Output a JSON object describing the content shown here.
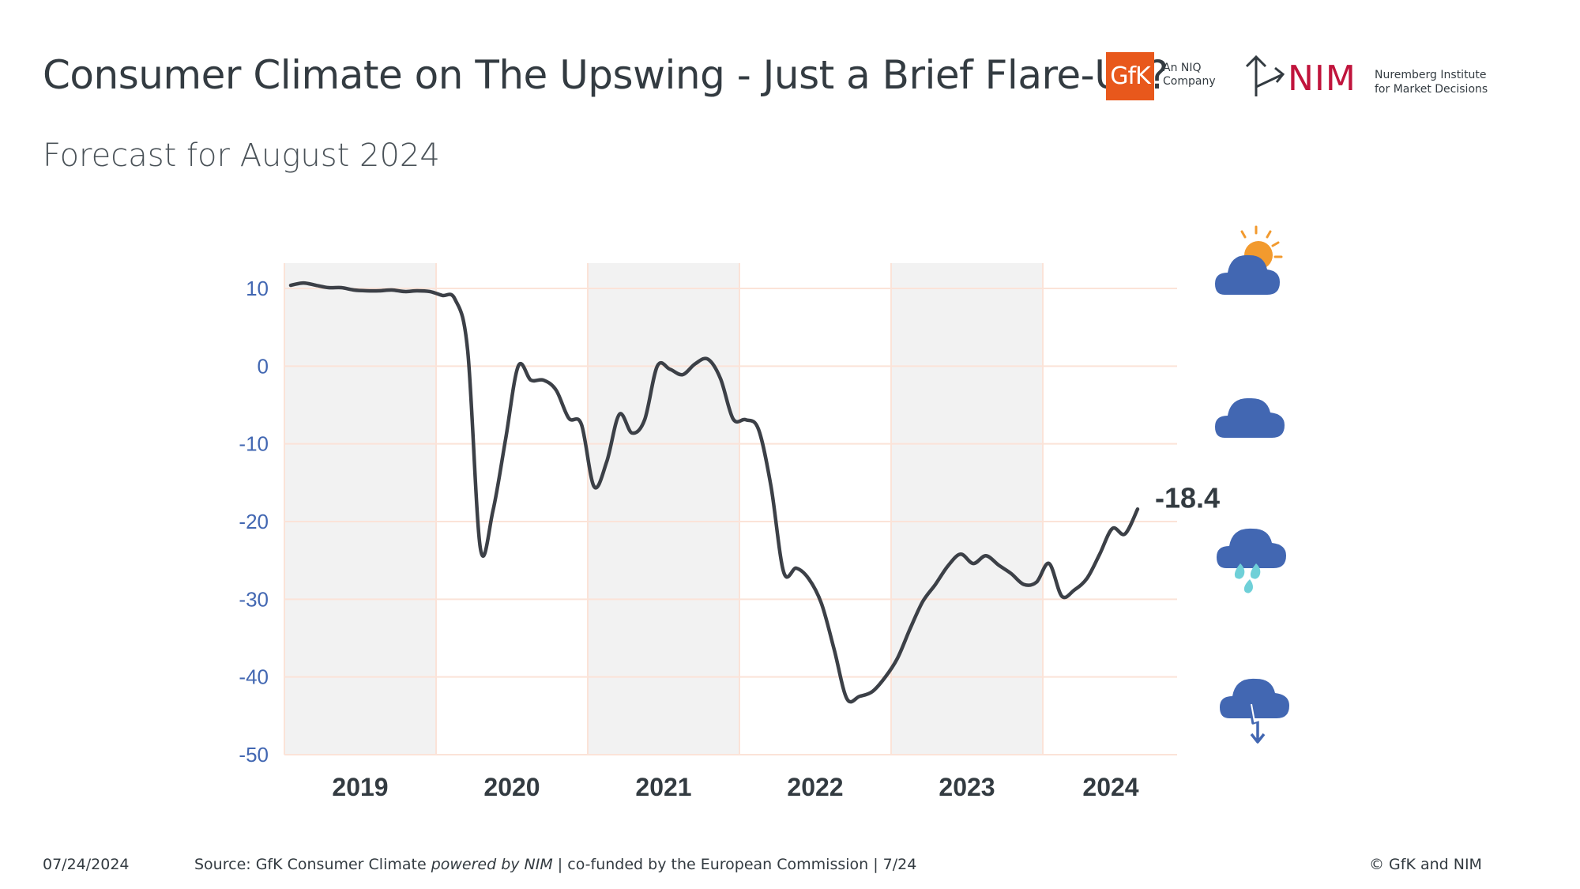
{
  "header": {
    "title": "Consumer Climate on The Upswing - Just a Brief Flare-Up?",
    "subtitle": "Forecast for August 2024"
  },
  "logos": {
    "gfk_mark": "GfK",
    "gfk_sub": "An NIQ Company",
    "nim_mark": "NIM",
    "nim_sub": "Nuremberg Institute for Market Decisions"
  },
  "footer": {
    "date": "07/24/2024",
    "source_prefix": "Source: GfK Consumer Climate ",
    "source_italic": "powered by NIM",
    "source_suffix": " | co-funded by the European Commission | 7/24",
    "copyright": "© GfK and NIM"
  },
  "icons": [
    "sun-cloud-icon",
    "cloud-icon",
    "rain-cloud-icon",
    "storm-cloud-icon"
  ],
  "chart_data": {
    "type": "line",
    "title": "Consumer Climate on The Upswing - Just a Brief Flare-Up?",
    "subtitle": "Forecast for August 2024",
    "ylim": [
      -50,
      12
    ],
    "yticks": [
      10,
      0,
      -10,
      -20,
      -30,
      -40,
      -50
    ],
    "years": [
      "2019",
      "2020",
      "2021",
      "2022",
      "2023",
      "2024"
    ],
    "shaded_years": [
      "2019",
      "2021",
      "2023"
    ],
    "grid": true,
    "line_color": "#3c4047",
    "tick_color": "#4267b2",
    "last_value_label": "-18.4",
    "series": [
      {
        "x": [
          "2019-01",
          "2019-02",
          "2019-03",
          "2019-04",
          "2019-05",
          "2019-06",
          "2019-07",
          "2019-08",
          "2019-09",
          "2019-10",
          "2019-11",
          "2019-12",
          "2020-01",
          "2020-02",
          "2020-03",
          "2020-04",
          "2020-05",
          "2020-06",
          "2020-07",
          "2020-08",
          "2020-09",
          "2020-10",
          "2020-11",
          "2020-12",
          "2021-01",
          "2021-02",
          "2021-03",
          "2021-04",
          "2021-05",
          "2021-06",
          "2021-07",
          "2021-08",
          "2021-09",
          "2021-10",
          "2021-11",
          "2021-12",
          "2022-01",
          "2022-02",
          "2022-03",
          "2022-04",
          "2022-05",
          "2022-06",
          "2022-07",
          "2022-08",
          "2022-09",
          "2022-10",
          "2022-11",
          "2022-12",
          "2023-01",
          "2023-02",
          "2023-03",
          "2023-04",
          "2023-05",
          "2023-06",
          "2023-07",
          "2023-08",
          "2023-09",
          "2023-10",
          "2023-11",
          "2023-12",
          "2024-01",
          "2024-02",
          "2024-03",
          "2024-04",
          "2024-05",
          "2024-06",
          "2024-07",
          "2024-08"
        ],
        "y": [
          10.4,
          10.7,
          10.4,
          10.1,
          10.1,
          9.8,
          9.7,
          9.7,
          9.8,
          9.6,
          9.7,
          9.6,
          9.1,
          8.6,
          2.0,
          -23.4,
          -18.6,
          -9.4,
          0.0,
          -1.8,
          -1.8,
          -3.1,
          -6.7,
          -7.5,
          -15.5,
          -12.3,
          -6.2,
          -8.6,
          -6.9,
          0.0,
          -0.4,
          -1.1,
          0.3,
          0.9,
          -1.6,
          -6.8,
          -6.9,
          -8.1,
          -15.5,
          -26.5,
          -26.0,
          -27.4,
          -30.6,
          -36.5,
          -42.8,
          -42.5,
          -41.9,
          -40.1,
          -37.6,
          -33.8,
          -30.3,
          -28.1,
          -25.7,
          -24.2,
          -25.4,
          -24.4,
          -25.6,
          -26.7,
          -28.1,
          -27.8,
          -25.4,
          -29.6,
          -28.8,
          -27.3,
          -24.2,
          -20.9,
          -21.6,
          -18.4
        ]
      }
    ]
  }
}
